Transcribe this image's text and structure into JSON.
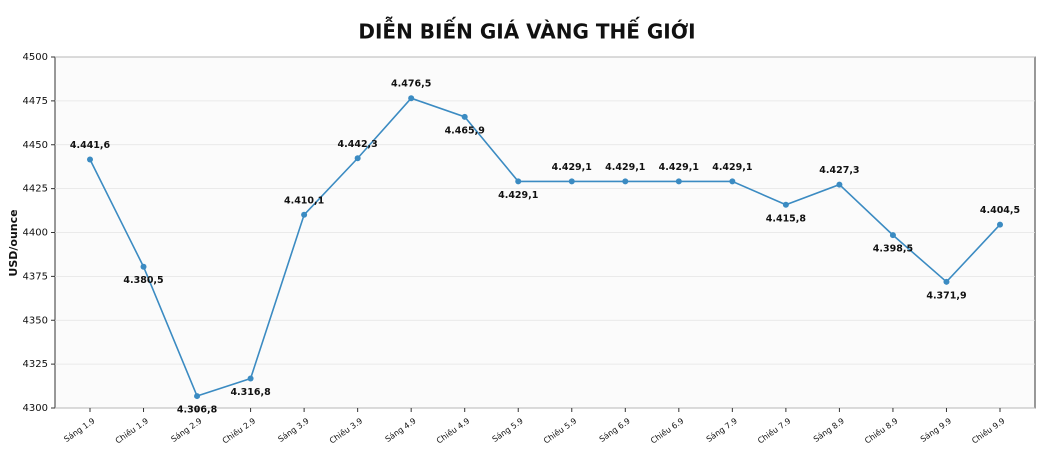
{
  "chart_data": {
    "type": "line",
    "title": "DIỄN BIẾN GIÁ VÀNG THẾ GIỚI",
    "y_label": "USD/ounce",
    "categories": [
      "Sáng 1.9",
      "Chiều 1.9",
      "Sáng 2.9",
      "Chiều 2.9",
      "Sáng 3.9",
      "Chiều 3.9",
      "Sáng 4.9",
      "Chiều 4.9",
      "Sáng 5.9",
      "Chiều 5.9",
      "Sáng 6.9",
      "Chiều 6.9",
      "Sáng 7.9",
      "Chiều 7.9",
      "Sáng 8.9",
      "Chiều 8.9",
      "Sáng 9.9",
      "Chiều 9.9"
    ],
    "series": [
      {
        "name": "USD/ounce",
        "color": "#3b8bc2",
        "values": [
          4441.6,
          4380.5,
          4306.8,
          4316.8,
          4410.1,
          4442.3,
          4476.5,
          4465.9,
          4429.1,
          4429.1,
          4429.1,
          4429.1,
          4429.1,
          4415.8,
          4427.3,
          4398.5,
          4371.9,
          4404.5
        ],
        "value_labels": [
          "4.441,6",
          "4.380,5",
          "4.306,8",
          "4.316,8",
          "4.410,1",
          "4.442,3",
          "4.476,5",
          "4.465,9",
          "4.429,1",
          "4.429,1",
          "4.429,1",
          "4.429,1",
          "4.429,1",
          "4.415,8",
          "4.427,3",
          "4.398,5",
          "4.371,9",
          "4.404,5"
        ]
      }
    ],
    "ylim": [
      4300,
      4500
    ],
    "yticks": [
      4300,
      4325,
      4350,
      4375,
      4400,
      4425,
      4450,
      4475,
      4500
    ],
    "grid": true
  }
}
